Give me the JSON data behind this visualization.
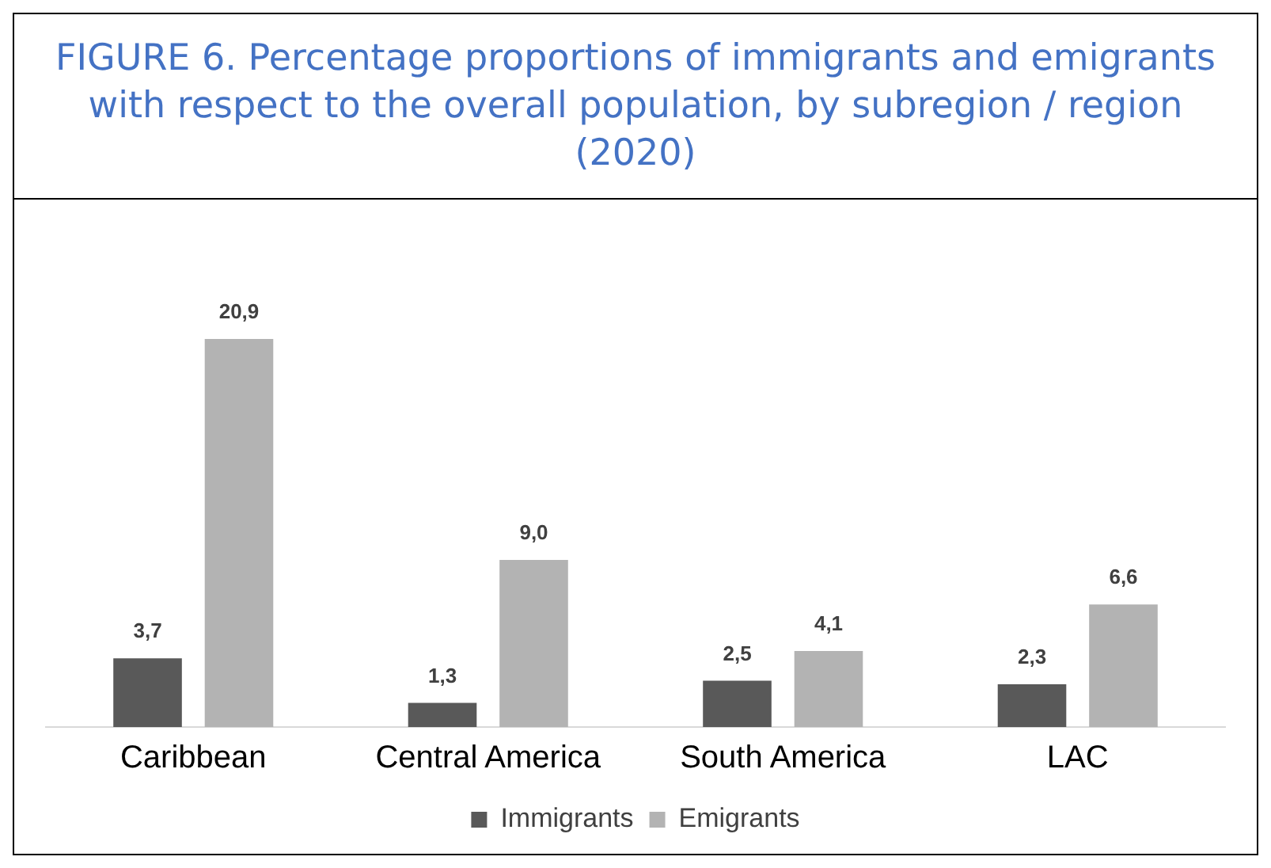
{
  "chart_data": {
    "type": "bar",
    "title": "FIGURE 6. Percentage proportions of immigrants and emigrants with respect to the overall population, by subregion / region (2020)",
    "categories": [
      "Caribbean",
      "Central America",
      "South America",
      "LAC"
    ],
    "series": [
      {
        "name": "Immigrants",
        "color": "#595959",
        "values": [
          3.7,
          1.3,
          2.5,
          2.3
        ],
        "value_labels": [
          "3,7",
          "1,3",
          "2,5",
          "2,3"
        ]
      },
      {
        "name": "Emigrants",
        "color": "#b3b3b3",
        "values": [
          20.9,
          9.0,
          4.1,
          6.6
        ],
        "value_labels": [
          "20,9",
          "9,0",
          "4,1",
          "6,6"
        ]
      }
    ],
    "legend": "bottom",
    "grid": false
  }
}
